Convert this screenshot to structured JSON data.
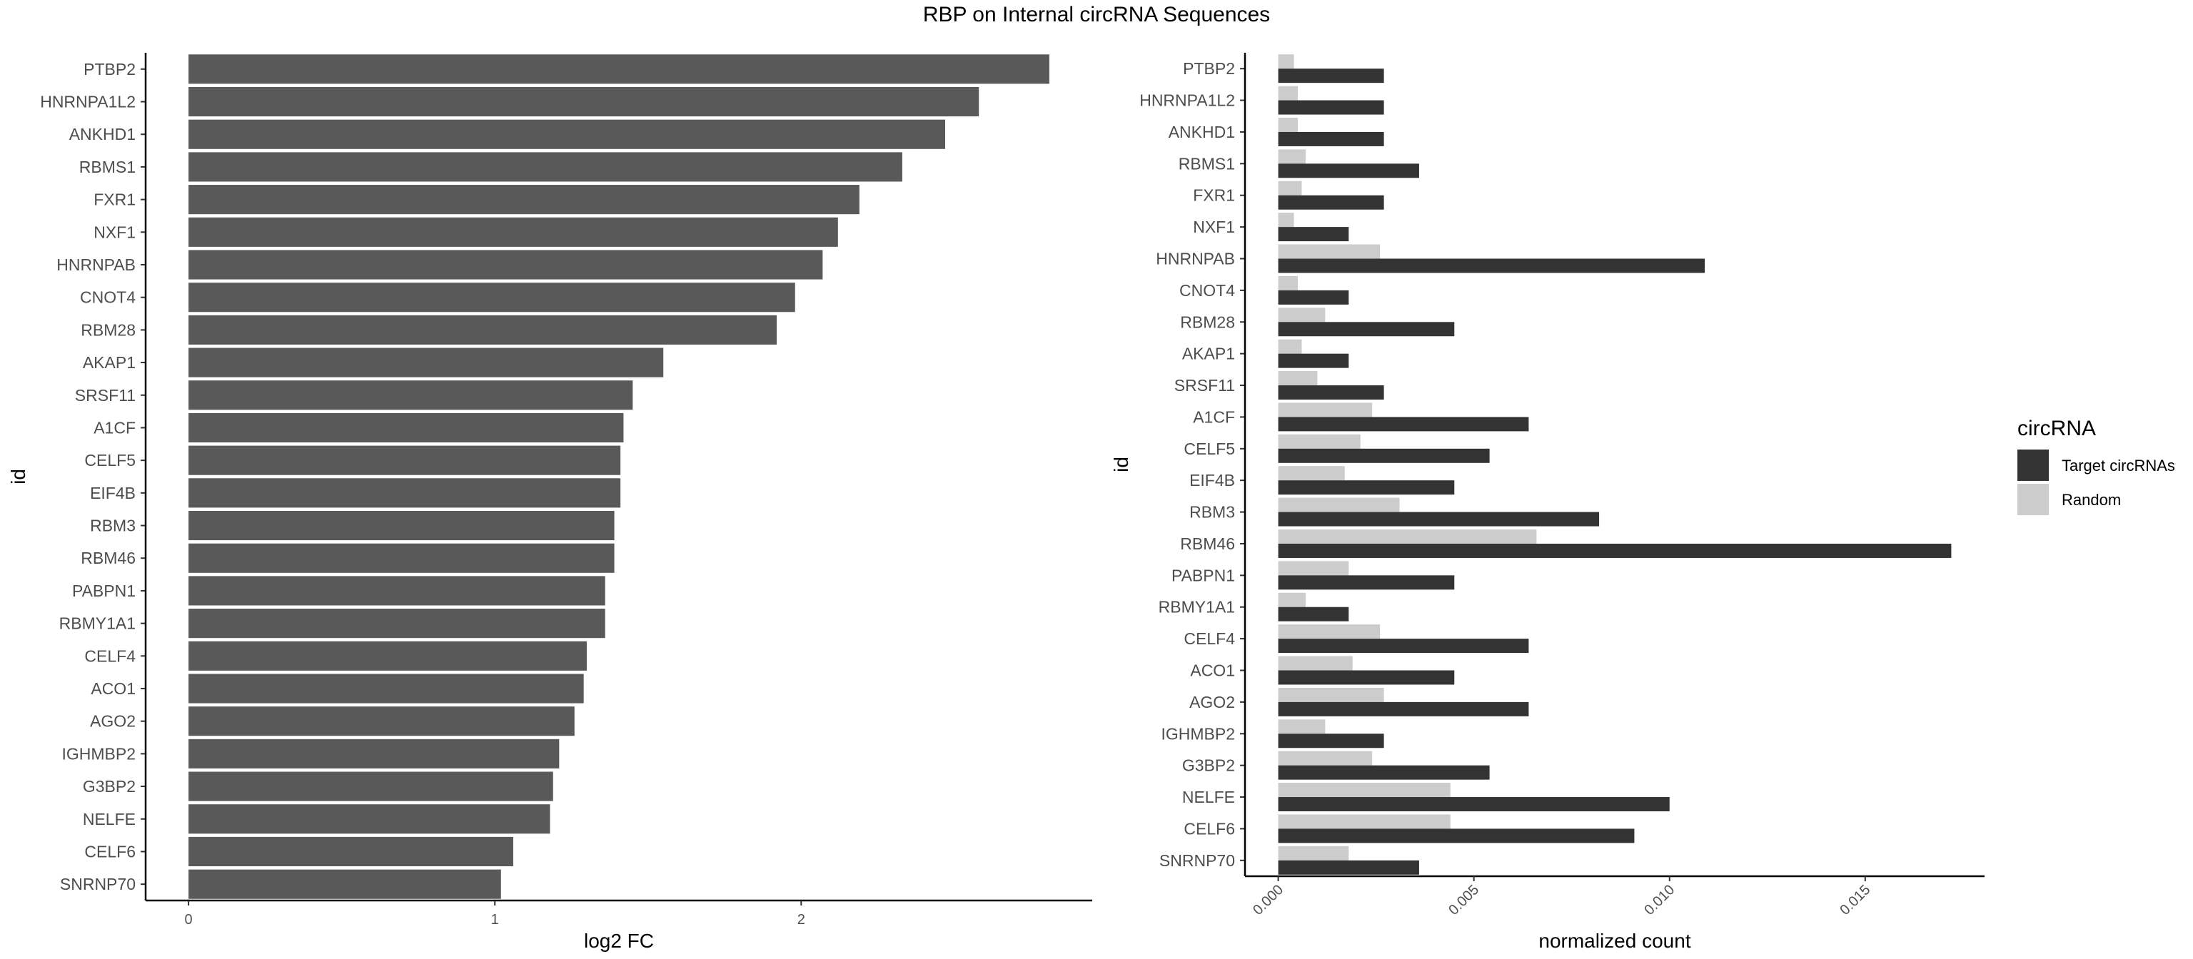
{
  "title": "RBP on Internal circRNA Sequences",
  "chart_data": [
    {
      "type": "bar",
      "orientation": "horizontal",
      "categories": [
        "PTBP2",
        "HNRNPA1L2",
        "ANKHD1",
        "RBMS1",
        "FXR1",
        "NXF1",
        "HNRNPAB",
        "CNOT4",
        "RBM28",
        "AKAP1",
        "SRSF11",
        "A1CF",
        "CELF5",
        "EIF4B",
        "RBM3",
        "RBM46",
        "PABPN1",
        "RBMY1A1",
        "CELF4",
        "ACO1",
        "AGO2",
        "IGHMBP2",
        "G3BP2",
        "NELFE",
        "CELF6",
        "SNRNP70"
      ],
      "values": [
        2.81,
        2.58,
        2.47,
        2.33,
        2.19,
        2.12,
        2.07,
        1.98,
        1.92,
        1.55,
        1.45,
        1.42,
        1.41,
        1.41,
        1.39,
        1.39,
        1.36,
        1.36,
        1.3,
        1.29,
        1.26,
        1.21,
        1.19,
        1.18,
        1.06,
        1.02
      ],
      "xlabel": "log2 FC",
      "ylabel": "id",
      "xticks": [
        "0",
        "1",
        "2"
      ],
      "xlim": [
        -0.14,
        2.95
      ],
      "grid": false,
      "bar_color": "#595959"
    },
    {
      "type": "bar",
      "orientation": "horizontal",
      "categories": [
        "PTBP2",
        "HNRNPA1L2",
        "ANKHD1",
        "RBMS1",
        "FXR1",
        "NXF1",
        "HNRNPAB",
        "CNOT4",
        "RBM28",
        "AKAP1",
        "SRSF11",
        "A1CF",
        "CELF5",
        "EIF4B",
        "RBM3",
        "RBM46",
        "PABPN1",
        "RBMY1A1",
        "CELF4",
        "ACO1",
        "AGO2",
        "IGHMBP2",
        "G3BP2",
        "NELFE",
        "CELF6",
        "SNRNP70"
      ],
      "series": [
        {
          "name": "Target circRNAs",
          "color": "#333333",
          "values": [
            0.0027,
            0.0027,
            0.0027,
            0.0036,
            0.0027,
            0.0018,
            0.0109,
            0.0018,
            0.0045,
            0.0018,
            0.0027,
            0.0064,
            0.0054,
            0.0045,
            0.0082,
            0.0172,
            0.0045,
            0.0018,
            0.0064,
            0.0045,
            0.0064,
            0.0027,
            0.0054,
            0.01,
            0.0091,
            0.0036
          ]
        },
        {
          "name": "Random",
          "color": "#cccccc",
          "values": [
            0.0004,
            0.0005,
            0.0005,
            0.0007,
            0.0006,
            0.0004,
            0.0026,
            0.0005,
            0.0012,
            0.0006,
            0.001,
            0.0024,
            0.0021,
            0.0017,
            0.0031,
            0.0066,
            0.0018,
            0.0007,
            0.0026,
            0.0019,
            0.0027,
            0.0012,
            0.0024,
            0.0044,
            0.0044,
            0.0018
          ]
        }
      ],
      "xlabel": "normalized count",
      "ylabel": "id",
      "xticks": [
        "0.000",
        "0.005",
        "0.010",
        "0.015"
      ],
      "xlim": [
        -0.00085,
        0.01805
      ],
      "grid": false,
      "legend_title": "circRNA",
      "legend_position": "right"
    }
  ]
}
